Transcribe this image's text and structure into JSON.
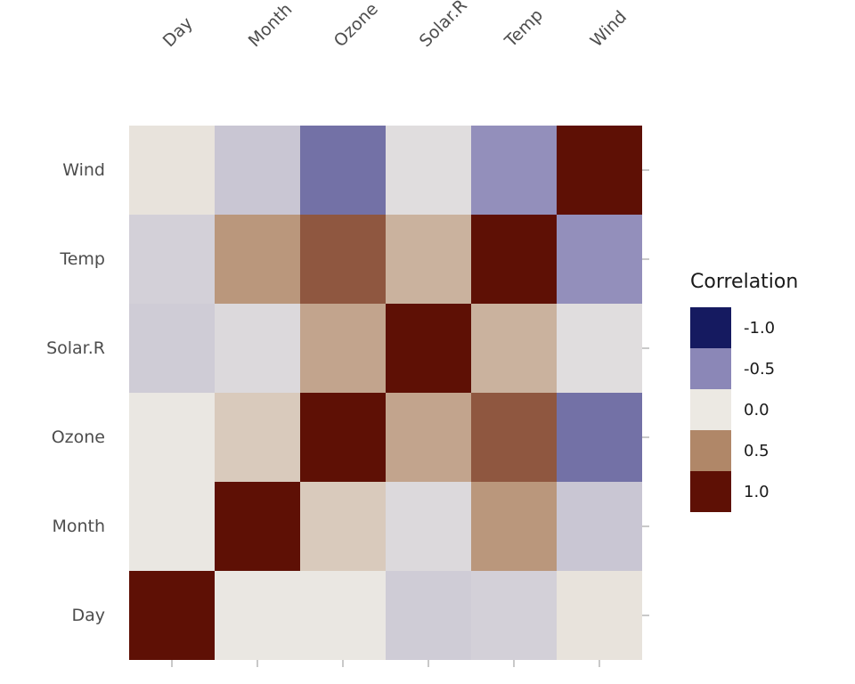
{
  "chart_data": {
    "type": "heatmap",
    "title": "",
    "x_categories": [
      "Day",
      "Month",
      "Ozone",
      "Solar.R",
      "Temp",
      "Wind"
    ],
    "y_categories": [
      "Wind",
      "Temp",
      "Solar.R",
      "Ozone",
      "Month",
      "Day"
    ],
    "values": [
      [
        0.03,
        -0.18,
        -0.6,
        -0.06,
        -0.46,
        1.0
      ],
      [
        -0.13,
        0.42,
        0.7,
        0.28,
        1.0,
        -0.46
      ],
      [
        -0.15,
        -0.08,
        0.35,
        1.0,
        0.28,
        -0.06
      ],
      [
        -0.01,
        0.16,
        1.0,
        0.35,
        0.7,
        -0.6
      ],
      [
        -0.01,
        1.0,
        0.16,
        -0.08,
        0.42,
        -0.18
      ],
      [
        1.0,
        -0.01,
        -0.01,
        -0.15,
        -0.13,
        0.03
      ]
    ],
    "colorscale": {
      "stops": [
        -1,
        -0.5,
        0,
        0.5,
        1
      ],
      "colors": [
        "#151a60",
        "#8b87b7",
        "#ece9e3",
        "#b08768",
        "#5e1005"
      ]
    },
    "legend": {
      "title": "Correlation",
      "ticks": [
        {
          "label": "-1.0",
          "value": -1.0
        },
        {
          "label": "-0.5",
          "value": -0.5
        },
        {
          "label": "0.0",
          "value": 0.0
        },
        {
          "label": "0.5",
          "value": 0.5
        },
        {
          "label": "1.0",
          "value": 1.0
        }
      ],
      "position": "right"
    },
    "grid": false,
    "axis_text_color": "#4d4d4d"
  }
}
